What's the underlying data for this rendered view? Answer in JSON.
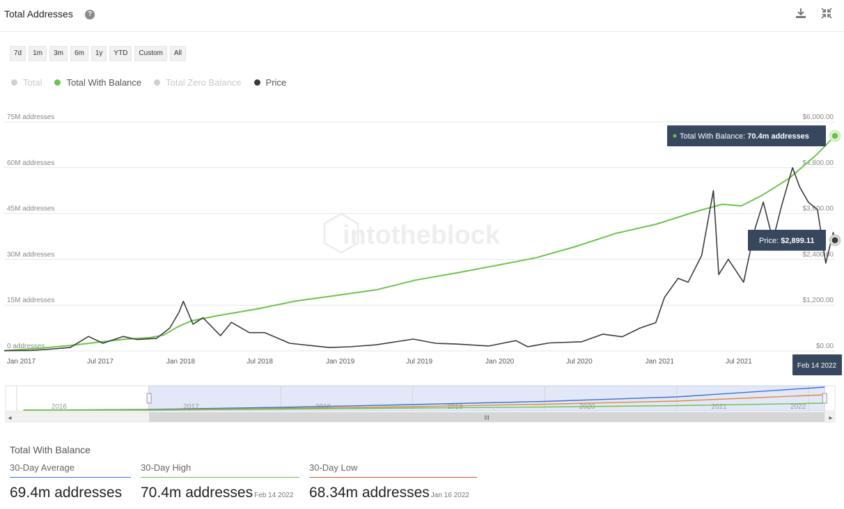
{
  "header": {
    "title": "Total Addresses",
    "help_icon": "?"
  },
  "range_buttons": [
    "7d",
    "1m",
    "3m",
    "6m",
    "1y",
    "YTD",
    "Custom",
    "All"
  ],
  "legend": [
    {
      "label": "Total",
      "color": "#cccccc",
      "active": false
    },
    {
      "label": "Total With Balance",
      "color": "#6cc24a",
      "active": true
    },
    {
      "label": "Total Zero Balance",
      "color": "#cccccc",
      "active": false
    },
    {
      "label": "Price",
      "color": "#3a3a3a",
      "active": true
    }
  ],
  "watermark": "intotheblock",
  "chart_data": {
    "type": "line",
    "x_range": [
      "2016-12-01",
      "2022-02-14"
    ],
    "x_ticks": [
      {
        "date": "2017-01-01",
        "label": "Jan 2017"
      },
      {
        "date": "2017-07-01",
        "label": "Jul 2017"
      },
      {
        "date": "2018-01-01",
        "label": "Jan 2018"
      },
      {
        "date": "2018-07-01",
        "label": "Jul 2018"
      },
      {
        "date": "2019-01-01",
        "label": "Jan 2019"
      },
      {
        "date": "2019-07-01",
        "label": "Jul 2019"
      },
      {
        "date": "2020-01-01",
        "label": "Jan 2020"
      },
      {
        "date": "2020-07-01",
        "label": "Jul 2020"
      },
      {
        "date": "2021-01-01",
        "label": "Jan 2021"
      },
      {
        "date": "2021-07-01",
        "label": "Jul 2021"
      }
    ],
    "y_left": {
      "min": 0,
      "max": 75,
      "ticks": [
        {
          "value": 0,
          "label": "0 addresses"
        },
        {
          "value": 15,
          "label": "15M addresses"
        },
        {
          "value": 30,
          "label": "30M addresses"
        },
        {
          "value": 45,
          "label": "45M addresses"
        },
        {
          "value": 60,
          "label": "60M addresses"
        },
        {
          "value": 75,
          "label": "75M addresses"
        }
      ]
    },
    "y_right": {
      "min": 0,
      "max": 6000,
      "ticks": [
        {
          "value": 0,
          "label": "$0.00"
        },
        {
          "value": 1200,
          "label": "$1,200.00"
        },
        {
          "value": 2400,
          "label": "$2,400.00"
        },
        {
          "value": 3600,
          "label": "$3,600.00"
        },
        {
          "value": 4800,
          "label": "$4,800.00"
        },
        {
          "value": 6000,
          "label": "$6,000.00"
        }
      ]
    },
    "grid": true,
    "series": [
      {
        "name": "Total With Balance",
        "axis": "left",
        "color": "#6cc24a",
        "points": [
          [
            "2016-12-01",
            0.1
          ],
          [
            "2017-01-15",
            0.5
          ],
          [
            "2017-03-01",
            1.0
          ],
          [
            "2017-05-01",
            1.8
          ],
          [
            "2017-07-01",
            2.8
          ],
          [
            "2017-09-01",
            3.8
          ],
          [
            "2017-11-01",
            4.4
          ],
          [
            "2017-12-01",
            5.2
          ],
          [
            "2018-01-01",
            7.8
          ],
          [
            "2018-02-01",
            9.8
          ],
          [
            "2018-04-01",
            11.5
          ],
          [
            "2018-07-01",
            13.7
          ],
          [
            "2018-10-01",
            16.4
          ],
          [
            "2019-01-01",
            18.2
          ],
          [
            "2019-04-01",
            20.0
          ],
          [
            "2019-07-01",
            23.2
          ],
          [
            "2019-10-01",
            25.5
          ],
          [
            "2020-01-01",
            28.0
          ],
          [
            "2020-04-01",
            30.5
          ],
          [
            "2020-07-01",
            34.2
          ],
          [
            "2020-10-01",
            38.5
          ],
          [
            "2021-01-01",
            41.5
          ],
          [
            "2021-04-01",
            45.6
          ],
          [
            "2021-06-01",
            48.0
          ],
          [
            "2021-07-15",
            47.5
          ],
          [
            "2021-09-01",
            51.0
          ],
          [
            "2021-11-01",
            56.5
          ],
          [
            "2022-01-01",
            64.0
          ],
          [
            "2022-02-14",
            70.4
          ]
        ]
      },
      {
        "name": "Price",
        "axis": "right",
        "color": "#3a3a3a",
        "points": [
          [
            "2016-12-01",
            8
          ],
          [
            "2017-02-01",
            12
          ],
          [
            "2017-03-15",
            45
          ],
          [
            "2017-05-01",
            90
          ],
          [
            "2017-06-12",
            380
          ],
          [
            "2017-07-15",
            200
          ],
          [
            "2017-08-30",
            380
          ],
          [
            "2017-10-01",
            300
          ],
          [
            "2017-11-15",
            330
          ],
          [
            "2017-12-15",
            600
          ],
          [
            "2018-01-05",
            1010
          ],
          [
            "2018-01-15",
            1300
          ],
          [
            "2018-02-06",
            700
          ],
          [
            "2018-03-01",
            870
          ],
          [
            "2018-04-10",
            400
          ],
          [
            "2018-05-05",
            750
          ],
          [
            "2018-06-15",
            480
          ],
          [
            "2018-07-20",
            480
          ],
          [
            "2018-08-30",
            280
          ],
          [
            "2018-09-15",
            200
          ],
          [
            "2018-11-20",
            120
          ],
          [
            "2018-12-15",
            90
          ],
          [
            "2019-02-01",
            110
          ],
          [
            "2019-04-01",
            160
          ],
          [
            "2019-06-25",
            310
          ],
          [
            "2019-08-15",
            200
          ],
          [
            "2019-10-01",
            180
          ],
          [
            "2019-12-15",
            130
          ],
          [
            "2020-02-15",
            270
          ],
          [
            "2020-03-13",
            110
          ],
          [
            "2020-05-01",
            210
          ],
          [
            "2020-07-15",
            240
          ],
          [
            "2020-09-01",
            440
          ],
          [
            "2020-10-15",
            370
          ],
          [
            "2020-11-25",
            600
          ],
          [
            "2020-12-31",
            740
          ],
          [
            "2021-01-20",
            1400
          ],
          [
            "2021-02-20",
            1900
          ],
          [
            "2021-03-15",
            1800
          ],
          [
            "2021-04-15",
            2500
          ],
          [
            "2021-05-12",
            4200
          ],
          [
            "2021-05-24",
            2000
          ],
          [
            "2021-06-15",
            2400
          ],
          [
            "2021-07-20",
            1800
          ],
          [
            "2021-08-15",
            3200
          ],
          [
            "2021-09-03",
            3900
          ],
          [
            "2021-09-25",
            2900
          ],
          [
            "2021-10-15",
            3800
          ],
          [
            "2021-11-09",
            4800
          ],
          [
            "2021-11-25",
            4300
          ],
          [
            "2021-12-15",
            3900
          ],
          [
            "2022-01-05",
            3700
          ],
          [
            "2022-01-24",
            2300
          ],
          [
            "2022-02-10",
            3100
          ],
          [
            "2022-02-14",
            2899.11
          ]
        ]
      }
    ],
    "tooltips": {
      "balance": {
        "label": "Total With Balance:",
        "value": "70.4m addresses"
      },
      "price": {
        "label": "Price:",
        "value": "$2,899.11"
      },
      "date": "Feb 14 2022"
    }
  },
  "navigator": {
    "year_labels": [
      "2016",
      "2017",
      "2018",
      "2019",
      "2020",
      "2021",
      "2022"
    ],
    "selected_range": [
      "2017-01-01",
      "2022-02-14"
    ],
    "scroll_grip": "III",
    "left_arrow": "◂",
    "right_arrow": "▸"
  },
  "stats": {
    "title": "Total With Balance",
    "items": [
      {
        "label": "30-Day Average",
        "value": "69.4m addresses",
        "date": "",
        "color": "#3b6fd0"
      },
      {
        "label": "30-Day High",
        "value": "70.4m addresses",
        "date": "Feb 14 2022",
        "color": "#6cc24a"
      },
      {
        "label": "30-Day Low",
        "value": "68.34m addresses",
        "date": "Jan 16 2022",
        "color": "#d0552a"
      }
    ]
  }
}
